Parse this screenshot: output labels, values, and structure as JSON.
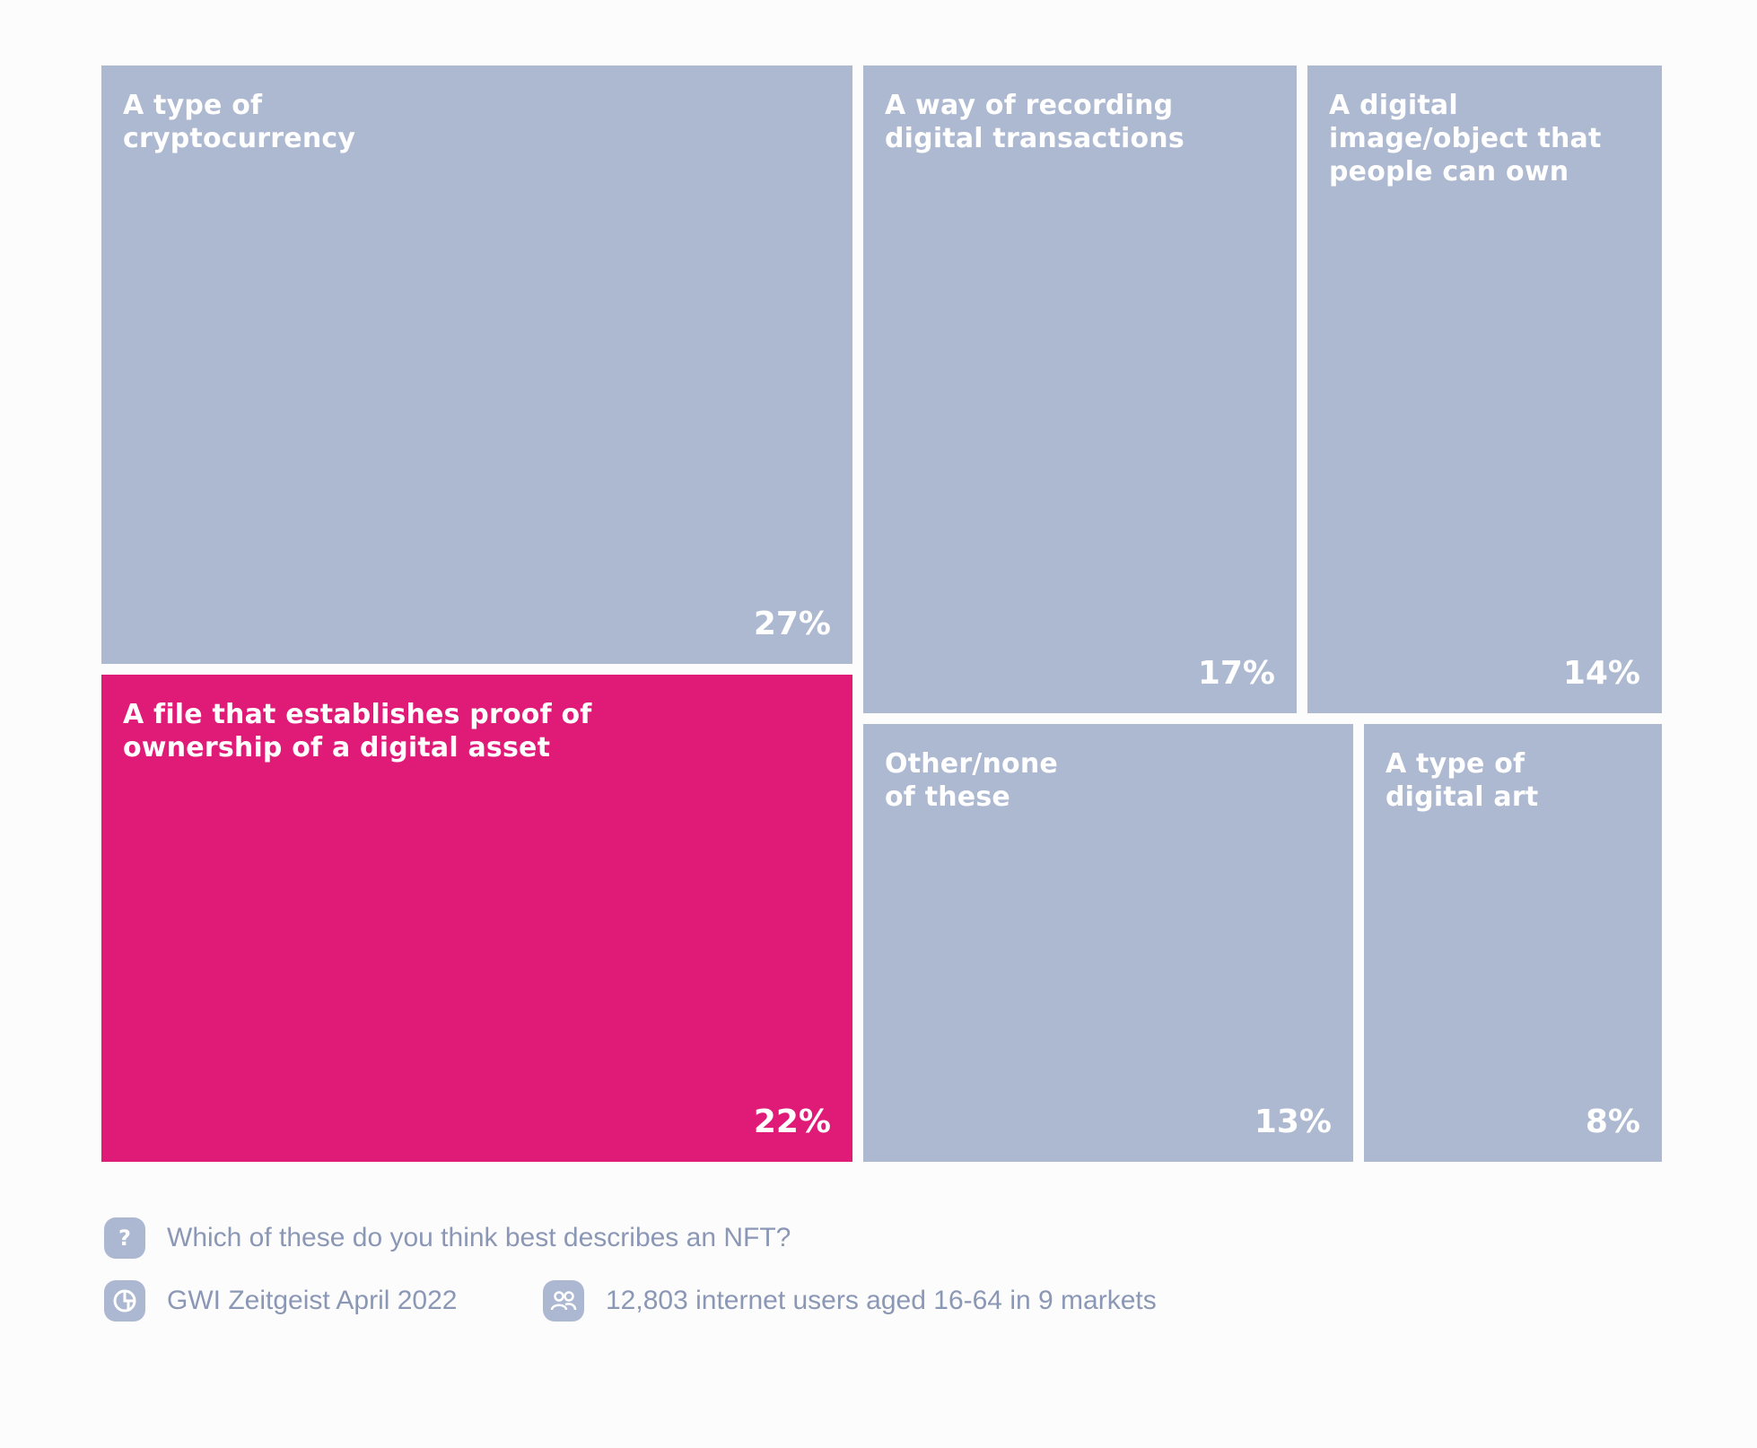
{
  "chart_data": {
    "type": "treemap",
    "tiles": [
      {
        "label": "A type of\ncryptocurrency",
        "value": 27,
        "display": "27%",
        "highlight": false
      },
      {
        "label": "A file that establishes proof of\nownership of a digital asset",
        "value": 22,
        "display": "22%",
        "highlight": true
      },
      {
        "label": "A way of recording\ndigital transactions",
        "value": 17,
        "display": "17%",
        "highlight": false
      },
      {
        "label": "A digital\nimage/object that\npeople can own",
        "value": 14,
        "display": "14%",
        "highlight": false
      },
      {
        "label": "Other/none\nof these",
        "value": 13,
        "display": "13%",
        "highlight": false
      },
      {
        "label": "A type of\ndigital art",
        "value": 8,
        "display": "8%",
        "highlight": false
      }
    ]
  },
  "colors": {
    "tile": "#adb8d1",
    "highlight": "#e01b77",
    "tile_text": "#ffffff",
    "meta_text": "#8a97b5",
    "icon_bg": "#acb8d1"
  },
  "footer": {
    "question": "Which of these do you think best describes an NFT?",
    "source": "GWI Zeitgeist April 2022",
    "sample": "12,803 internet users aged 16-64 in 9 markets",
    "icons": {
      "question": "question-icon",
      "source": "pie-chart-icon",
      "sample": "people-icon"
    }
  }
}
